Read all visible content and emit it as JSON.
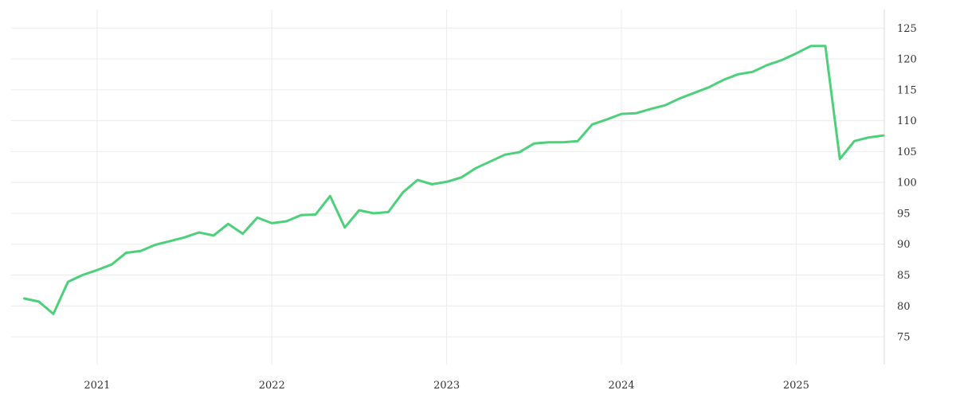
{
  "chart_data": {
    "type": "line",
    "title": "",
    "xlabel": "",
    "ylabel": "",
    "grid": true,
    "ylim": [
      70.5,
      128
    ],
    "xlim": [
      "2020-08",
      "2025-07"
    ],
    "y_ticks": [
      75,
      80,
      85,
      90,
      95,
      100,
      105,
      110,
      115,
      120,
      125
    ],
    "x_ticks": [
      {
        "date": "2021-01",
        "label": "2021"
      },
      {
        "date": "2022-01",
        "label": "2022"
      },
      {
        "date": "2023-01",
        "label": "2023"
      },
      {
        "date": "2024-01",
        "label": "2024"
      },
      {
        "date": "2025-01",
        "label": "2025"
      }
    ],
    "color": "#4cd07a",
    "series": [
      {
        "x": [
          "2020-08",
          "2020-09",
          "2020-10",
          "2020-11",
          "2020-12",
          "2021-01",
          "2021-02",
          "2021-03",
          "2021-04",
          "2021-05",
          "2021-06",
          "2021-07",
          "2021-08",
          "2021-09",
          "2021-10",
          "2021-11",
          "2021-12",
          "2022-01",
          "2022-02",
          "2022-03",
          "2022-04",
          "2022-05",
          "2022-06",
          "2022-07",
          "2022-08",
          "2022-09",
          "2022-10",
          "2022-11",
          "2022-12",
          "2023-01",
          "2023-02",
          "2023-03",
          "2023-04",
          "2023-05",
          "2023-06",
          "2023-07",
          "2023-08",
          "2023-09",
          "2023-10",
          "2023-11",
          "2023-12",
          "2024-01",
          "2024-02",
          "2024-03",
          "2024-04",
          "2024-05",
          "2024-06",
          "2024-07",
          "2024-08",
          "2024-09",
          "2024-10",
          "2024-11",
          "2024-12",
          "2025-01",
          "2025-02",
          "2025-03",
          "2025-04",
          "2025-05",
          "2025-06",
          "2025-07"
        ],
        "values": [
          81.2,
          80.7,
          78.7,
          83.9,
          85.0,
          85.8,
          86.7,
          88.6,
          88.9,
          89.9,
          90.5,
          91.1,
          91.9,
          91.4,
          93.3,
          91.7,
          94.3,
          93.4,
          93.7,
          94.7,
          94.8,
          97.8,
          92.7,
          95.5,
          95.0,
          95.2,
          98.4,
          100.4,
          99.7,
          100.1,
          100.8,
          102.3,
          103.4,
          104.5,
          104.9,
          106.3,
          106.5,
          106.5,
          106.7,
          109.4,
          110.2,
          111.1,
          111.2,
          111.9,
          112.5,
          113.6,
          114.5,
          115.4,
          116.6,
          117.5,
          117.9,
          119.0,
          119.8,
          120.9,
          122.1,
          122.1,
          103.8,
          106.7,
          107.3,
          107.6
        ]
      }
    ]
  }
}
